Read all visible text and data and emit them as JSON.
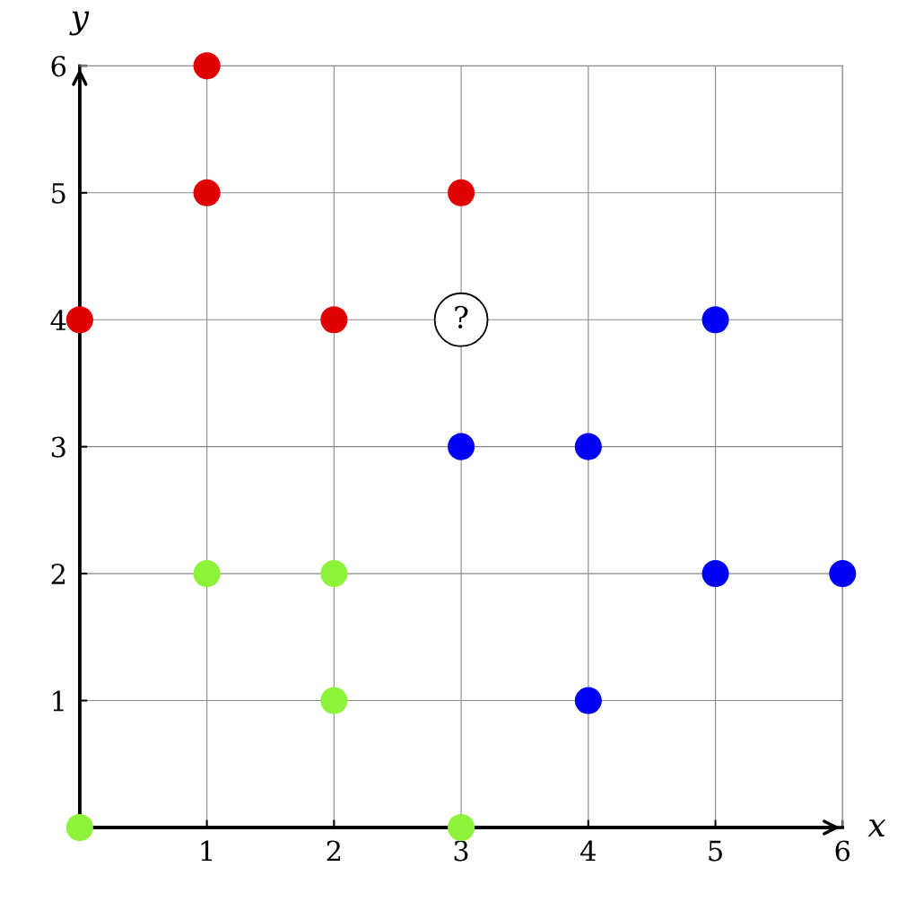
{
  "chart_data": {
    "type": "scatter",
    "xlabel": "x",
    "ylabel": "y",
    "xlim": [
      0,
      6
    ],
    "ylim": [
      0,
      6
    ],
    "xticks": [
      1,
      2,
      3,
      4,
      5,
      6
    ],
    "yticks": [
      1,
      2,
      3,
      4,
      5,
      6
    ],
    "grid": true,
    "legend": false,
    "marker": "circle",
    "series": [
      {
        "color": "#e00000",
        "x": [
          0,
          1,
          1,
          2,
          3
        ],
        "values": [
          4,
          5,
          6,
          4,
          5
        ]
      },
      {
        "color": "#0000f5",
        "x": [
          3,
          4,
          5,
          4,
          5,
          6
        ],
        "values": [
          3,
          3,
          4,
          1,
          2,
          2
        ]
      },
      {
        "color": "#8cf23a",
        "x": [
          0,
          1,
          2,
          2,
          3
        ],
        "values": [
          0,
          2,
          2,
          1,
          0
        ]
      },
      {
        "color": "#ffffff",
        "x": [
          3
        ],
        "values": [
          4
        ]
      }
    ],
    "annotations": [
      {
        "text": "?",
        "x": 3,
        "y": 4
      }
    ]
  }
}
